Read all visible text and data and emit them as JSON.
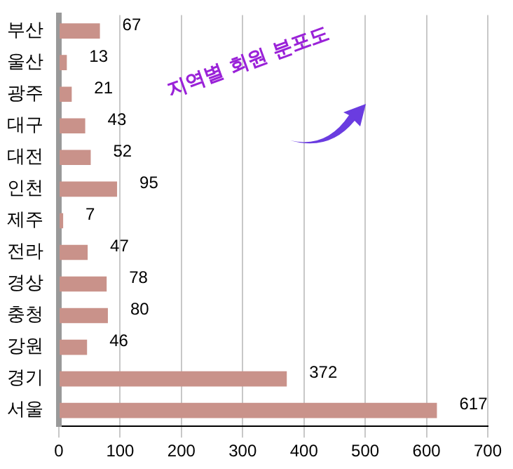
{
  "chart_data": {
    "type": "bar",
    "orientation": "horizontal",
    "title": "지역별 회원 분포도",
    "categories": [
      "부산",
      "울산",
      "광주",
      "대구",
      "대전",
      "인천",
      "제주",
      "전라",
      "경상",
      "충청",
      "강원",
      "경기",
      "서울"
    ],
    "values": [
      67,
      13,
      21,
      43,
      52,
      95,
      7,
      47,
      78,
      80,
      46,
      372,
      617
    ],
    "color": "#c9928a",
    "data_labels": true,
    "grid": "x",
    "xlim": [
      0,
      700
    ],
    "xticks": [
      0,
      100,
      200,
      300,
      400,
      500,
      600,
      700
    ]
  }
}
